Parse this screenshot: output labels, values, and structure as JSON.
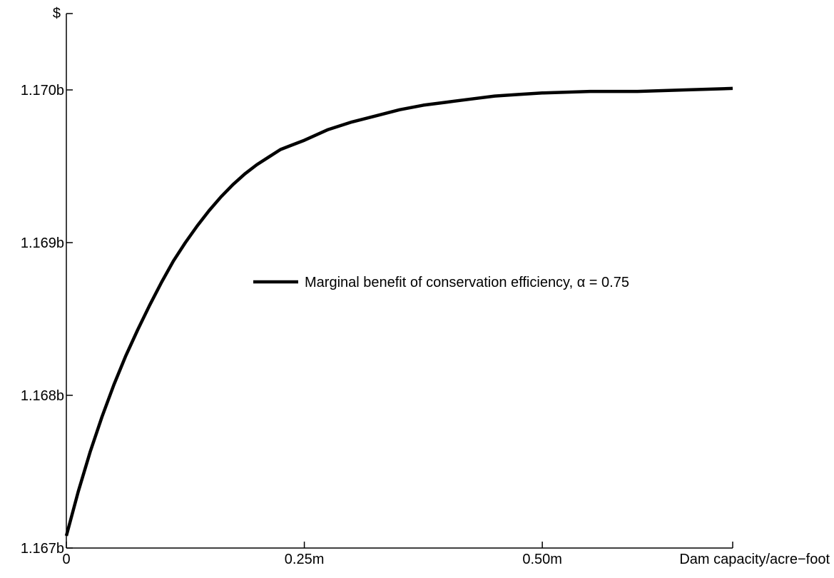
{
  "chart_data": {
    "type": "line",
    "ylabel": "$",
    "xlabel": "Dam capacity/acre−foot",
    "xlim": [
      0,
      700000
    ],
    "ylim": [
      1.167,
      1.1705
    ],
    "y_units": "billions of dollars",
    "x_units": "acre-feet",
    "grid": false,
    "legend_placement": "center-right",
    "x_ticks": [
      {
        "value": 0,
        "label": "0"
      },
      {
        "value": 250000,
        "label": "0.25m"
      },
      {
        "value": 500000,
        "label": "0.50m"
      }
    ],
    "y_ticks": [
      {
        "value": 1.167,
        "label": "1.167b"
      },
      {
        "value": 1.168,
        "label": "1.168b"
      },
      {
        "value": 1.169,
        "label": "1.169b"
      },
      {
        "value": 1.17,
        "label": "1.170b"
      }
    ],
    "series": [
      {
        "name": "Marginal benefit of conservation efficiency, α = 0.75",
        "color": "#000000",
        "x": [
          0,
          12500,
          25000,
          37500,
          50000,
          62500,
          75000,
          87500,
          100000,
          112500,
          125000,
          137500,
          150000,
          162500,
          175000,
          187500,
          200000,
          212500,
          225000,
          237500,
          250000,
          275000,
          300000,
          325000,
          350000,
          375000,
          400000,
          425000,
          450000,
          475000,
          500000,
          550000,
          600000,
          650000,
          700000
        ],
        "y": [
          1.16708,
          1.16737,
          1.16763,
          1.16786,
          1.16807,
          1.16826,
          1.16843,
          1.16859,
          1.16874,
          1.16888,
          1.169,
          1.16911,
          1.16921,
          1.1693,
          1.16938,
          1.16945,
          1.16951,
          1.16956,
          1.16961,
          1.16964,
          1.16967,
          1.16974,
          1.16979,
          1.16983,
          1.16987,
          1.1699,
          1.16992,
          1.16994,
          1.16996,
          1.16997,
          1.16998,
          1.16999,
          1.16999,
          1.17,
          1.17001
        ]
      }
    ]
  }
}
